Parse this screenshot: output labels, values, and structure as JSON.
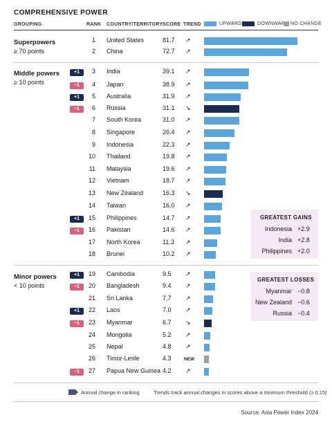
{
  "title": "COMPREHENSIVE POWER",
  "headers": {
    "grouping": "GROUPING",
    "rank": "RANK",
    "country": "COUNTRY/TERRITORY",
    "score": "SCORE",
    "trend": "TREND"
  },
  "legend": {
    "upward": "UPWARD",
    "downward": "DOWNWARD",
    "no_change": "NO CHANGE"
  },
  "colors": {
    "upward": "#5aa6dc",
    "downward": "#1b2a50",
    "no_change": "#9aa0a8",
    "rank_up": "#1b2a50",
    "rank_down": "#d9607a",
    "box_bg": "#f4e9f4"
  },
  "groups": [
    {
      "title": "Superpowers",
      "subtitle": "≥ 70 points"
    },
    {
      "title": "Middle powers",
      "subtitle": "≥ 10 points"
    },
    {
      "title": "Minor powers",
      "subtitle": "< 10 points"
    }
  ],
  "chart_data": {
    "type": "bar",
    "orientation": "horizontal",
    "title": "COMPREHENSIVE POWER",
    "xlim": [
      0,
      81.7
    ],
    "rows": [
      {
        "rank": "1",
        "country": "United States",
        "score": 81.7,
        "trend": "up",
        "change": ""
      },
      {
        "rank": "2",
        "country": "China",
        "score": 72.7,
        "trend": "up",
        "change": ""
      },
      {
        "rank": "3",
        "country": "India",
        "score": 39.1,
        "trend": "up",
        "change": "+1"
      },
      {
        "rank": "4",
        "country": "Japan",
        "score": 38.9,
        "trend": "up",
        "change": "−1"
      },
      {
        "rank": "5",
        "country": "Australia",
        "score": 31.9,
        "trend": "up",
        "change": "+1"
      },
      {
        "rank": "6",
        "country": "Russia",
        "score": 31.1,
        "trend": "down",
        "change": "−1"
      },
      {
        "rank": "7",
        "country": "South Korea",
        "score": 31.0,
        "trend": "up",
        "change": ""
      },
      {
        "rank": "8",
        "country": "Singapore",
        "score": 26.4,
        "trend": "up",
        "change": ""
      },
      {
        "rank": "9",
        "country": "Indonesia",
        "score": 22.3,
        "trend": "up",
        "change": ""
      },
      {
        "rank": "10",
        "country": "Thailand",
        "score": 19.8,
        "trend": "up",
        "change": ""
      },
      {
        "rank": "11",
        "country": "Malaysia",
        "score": 19.6,
        "trend": "up",
        "change": ""
      },
      {
        "rank": "12",
        "country": "Vietnam",
        "score": 18.7,
        "trend": "up",
        "change": ""
      },
      {
        "rank": "13",
        "country": "New Zealand",
        "score": 16.3,
        "trend": "down",
        "change": ""
      },
      {
        "rank": "14",
        "country": "Taiwan",
        "score": 16.0,
        "trend": "up",
        "change": ""
      },
      {
        "rank": "15",
        "country": "Philippines",
        "score": 14.7,
        "trend": "up",
        "change": "+1"
      },
      {
        "rank": "16",
        "country": "Pakistan",
        "score": 14.6,
        "trend": "up",
        "change": "−1"
      },
      {
        "rank": "17",
        "country": "North Korea",
        "score": 11.3,
        "trend": "up",
        "change": ""
      },
      {
        "rank": "18",
        "country": "Brunei",
        "score": 10.2,
        "trend": "up",
        "change": ""
      },
      {
        "rank": "19",
        "country": "Cambodia",
        "score": 9.5,
        "trend": "up",
        "change": "+1"
      },
      {
        "rank": "20",
        "country": "Bangladesh",
        "score": 9.4,
        "trend": "up",
        "change": "−1"
      },
      {
        "rank": "21",
        "country": "Sri Lanka",
        "score": 7.7,
        "trend": "up",
        "change": ""
      },
      {
        "rank": "22",
        "country": "Laos",
        "score": 7.0,
        "trend": "up",
        "change": "+1"
      },
      {
        "rank": "23",
        "country": "Myanmar",
        "score": 6.7,
        "trend": "down",
        "change": "−1"
      },
      {
        "rank": "24",
        "country": "Mongolia",
        "score": 5.2,
        "trend": "up",
        "change": ""
      },
      {
        "rank": "25",
        "country": "Nepal",
        "score": 4.8,
        "trend": "up",
        "change": ""
      },
      {
        "rank": "26",
        "country": "Timor-Leste",
        "score": 4.3,
        "trend": "new",
        "change": ""
      },
      {
        "rank": "27",
        "country": "Papua New Guinea",
        "score": 4.2,
        "trend": "up",
        "change": "−1"
      }
    ]
  },
  "trend_new_label": "NEW",
  "greatest_gains": {
    "title": "GREATEST GAINS",
    "items": [
      {
        "country": "Indonesia",
        "value": "+2.9"
      },
      {
        "country": "India",
        "value": "+2.8"
      },
      {
        "country": "Philippines",
        "value": "+2.0"
      }
    ]
  },
  "greatest_losses": {
    "title": "GREATEST LOSSES",
    "items": [
      {
        "country": "Myanmar",
        "value": "−0.8"
      },
      {
        "country": "New Zealand",
        "value": "−0.6"
      },
      {
        "country": "Russia",
        "value": "−0.4"
      }
    ]
  },
  "footer": {
    "ranking_note": "Annual change in ranking",
    "trend_note": "Trends track annual changes in scores above a minimum threshold (≥ 0.15)",
    "source": "Source: Asia Power Index 2024"
  }
}
